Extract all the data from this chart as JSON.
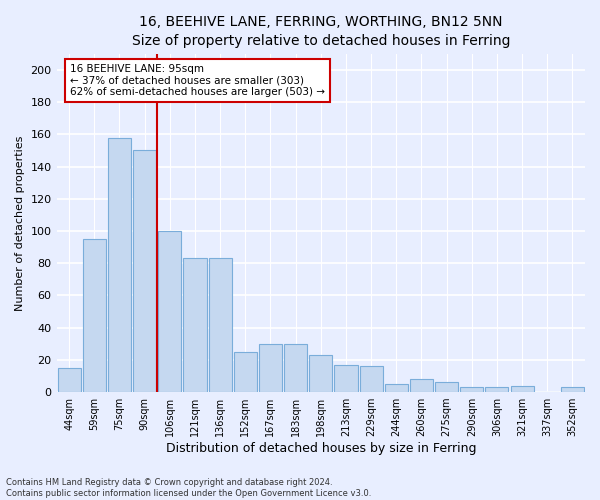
{
  "title": "16, BEEHIVE LANE, FERRING, WORTHING, BN12 5NN",
  "subtitle": "Size of property relative to detached houses in Ferring",
  "xlabel": "Distribution of detached houses by size in Ferring",
  "ylabel": "Number of detached properties",
  "categories": [
    "44sqm",
    "59sqm",
    "75sqm",
    "90sqm",
    "106sqm",
    "121sqm",
    "136sqm",
    "152sqm",
    "167sqm",
    "183sqm",
    "198sqm",
    "213sqm",
    "229sqm",
    "244sqm",
    "260sqm",
    "275sqm",
    "290sqm",
    "306sqm",
    "321sqm",
    "337sqm",
    "352sqm"
  ],
  "values": [
    15,
    95,
    158,
    150,
    100,
    83,
    83,
    25,
    30,
    30,
    23,
    17,
    16,
    5,
    8,
    6,
    3,
    3,
    4,
    0,
    3
  ],
  "bar_color": "#c5d8f0",
  "bar_edge_color": "#7aadda",
  "vline_x": 3.5,
  "vline_color": "#cc0000",
  "annotation_text": "16 BEEHIVE LANE: 95sqm\n← 37% of detached houses are smaller (303)\n62% of semi-detached houses are larger (503) →",
  "annotation_box_color": "#ffffff",
  "annotation_box_edge_color": "#cc0000",
  "ylim": [
    0,
    210
  ],
  "yticks": [
    0,
    20,
    40,
    60,
    80,
    100,
    120,
    140,
    160,
    180,
    200
  ],
  "background_color": "#e8eeff",
  "grid_color": "#ffffff",
  "title_fontsize": 10,
  "subtitle_fontsize": 9,
  "xlabel_fontsize": 9,
  "ylabel_fontsize": 8,
  "tick_fontsize": 7,
  "ytick_fontsize": 8,
  "footnote": "Contains HM Land Registry data © Crown copyright and database right 2024.\nContains public sector information licensed under the Open Government Licence v3.0."
}
